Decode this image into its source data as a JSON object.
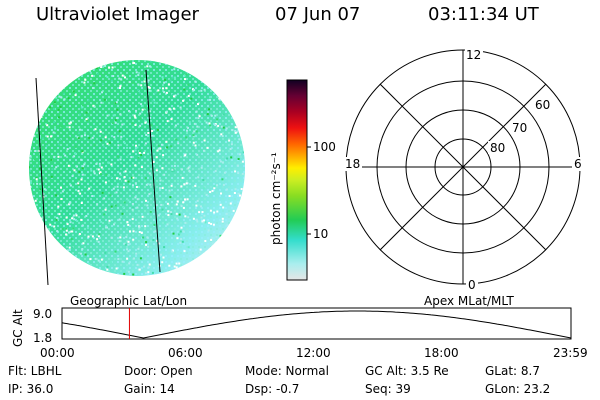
{
  "header": {
    "instrument": "Ultraviolet Imager",
    "date": "07 Jun 07",
    "time": "03:11:34 UT"
  },
  "colorbar": {
    "unit": "photon cm⁻²s⁻¹",
    "ticks": [
      "100",
      "10"
    ]
  },
  "polar_plot": {
    "mlt_labels": {
      "top": "12",
      "bottom": "0",
      "left": "18",
      "right": "6"
    },
    "lat_labels": [
      "60",
      "70",
      "80"
    ]
  },
  "timeline": {
    "left_label": "Geographic Lat/Lon",
    "right_label": "Apex MLat/MLT",
    "axis_label": "GC Alt",
    "y_ticks": [
      "9.0",
      "1.8"
    ],
    "x_ticks": [
      "00:00",
      "06:00",
      "12:00",
      "18:00",
      "23:59"
    ],
    "current_time_fraction": 0.1325,
    "marker_color": "#e00000"
  },
  "info": [
    {
      "key": "flt",
      "text": "Flt: LBHL"
    },
    {
      "key": "door",
      "text": "Door: Open"
    },
    {
      "key": "mode",
      "text": "Mode: Normal"
    },
    {
      "key": "gcalt",
      "text": "GC Alt: 3.5 Re"
    },
    {
      "key": "glat",
      "text": "GLat:   8.7"
    },
    {
      "key": "ip",
      "text": "IP: 36.0"
    },
    {
      "key": "gain",
      "text": "Gain: 14"
    },
    {
      "key": "dsp",
      "text": "Dsp:   -0.7"
    },
    {
      "key": "seq",
      "text": "Seq: 39"
    },
    {
      "key": "glon",
      "text": "GLon:  23.2"
    }
  ]
}
